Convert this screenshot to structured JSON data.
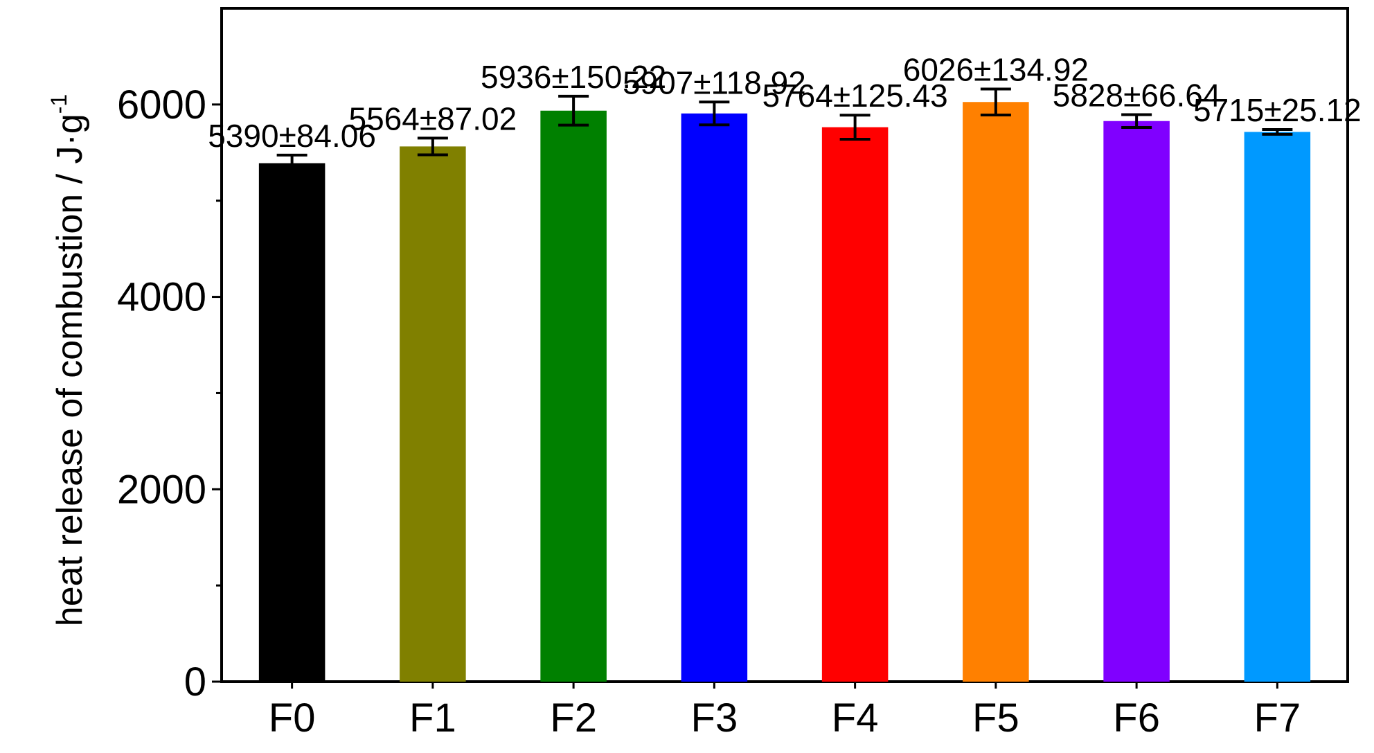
{
  "chart_data": {
    "type": "bar",
    "categories": [
      "F0",
      "F1",
      "F2",
      "F3",
      "F4",
      "F5",
      "F6",
      "F7"
    ],
    "values": [
      5390,
      5564,
      5936,
      5907,
      5764,
      6026,
      5828,
      5715
    ],
    "errors": [
      84.06,
      87.02,
      150.22,
      118.92,
      125.43,
      134.92,
      66.64,
      25.12
    ],
    "data_labels": [
      "5390±84.06",
      "5564±87.02",
      "5936±150.22",
      "5907±118.92",
      "5764±125.43",
      "6026±134.92",
      "5828±66.64",
      "5715±25.12"
    ],
    "colors": [
      "#000000",
      "#808000",
      "#008000",
      "#0000ff",
      "#ff0000",
      "#ff8000",
      "#8000ff",
      "#0099ff"
    ],
    "ylabel": "heat release of combustion / J·g",
    "ylabel_superscript": "-1",
    "xlabel": "",
    "ylim": [
      0,
      7000
    ],
    "y_ticks": [
      0,
      2000,
      4000,
      6000
    ],
    "y_tick_labels": [
      "0",
      "2000",
      "4000",
      "6000"
    ],
    "y_minor_ticks": [
      1000,
      3000,
      5000
    ],
    "grid": false,
    "legend": "none"
  }
}
